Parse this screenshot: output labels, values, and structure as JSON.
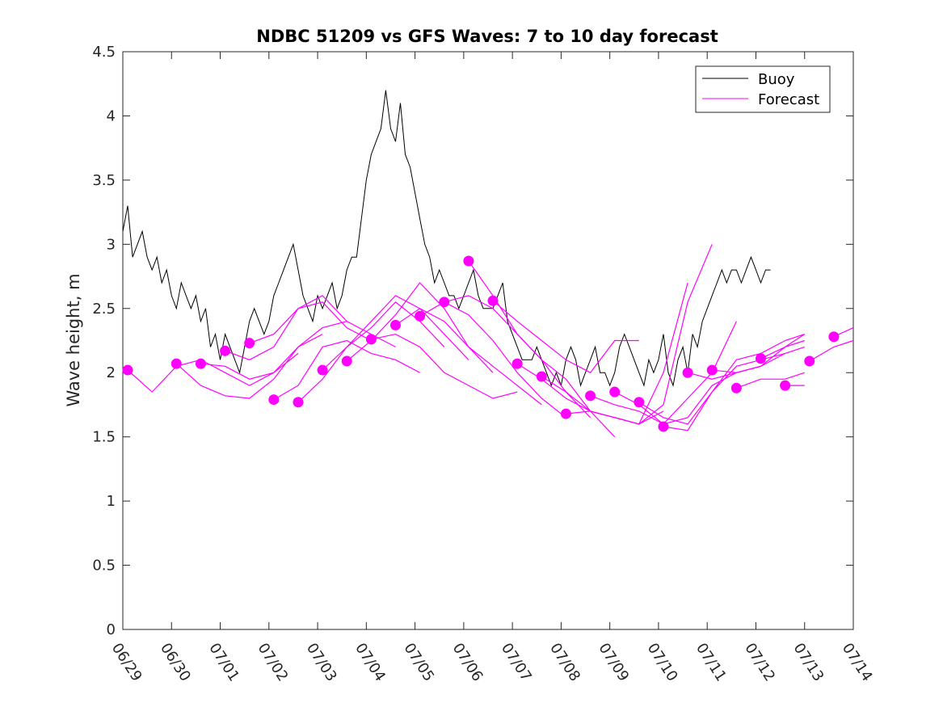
{
  "chart_data": {
    "type": "line",
    "title": "NDBC 51209 vs GFS Waves: 7 to 10 day forecast",
    "ylabel": "Wave height, m",
    "xlabel": "",
    "ylim": [
      0,
      4.5
    ],
    "yticks": [
      0,
      0.5,
      1,
      1.5,
      2,
      2.5,
      3,
      3.5,
      4,
      4.5
    ],
    "ytick_labels": [
      "0",
      "0.5",
      "1",
      "1.5",
      "2",
      "2.5",
      "3",
      "3.5",
      "4",
      "4.5"
    ],
    "x_axis": "date",
    "xlim": [
      "06/29",
      "07/14"
    ],
    "xtick_labels": [
      "06/29",
      "06/30",
      "07/01",
      "07/02",
      "07/03",
      "07/04",
      "07/05",
      "07/06",
      "07/07",
      "07/08",
      "07/09",
      "07/10",
      "07/11",
      "07/12",
      "07/13",
      "07/14"
    ],
    "legend": {
      "location": "top-right",
      "entries": [
        {
          "label": "Buoy",
          "color": "#000000"
        },
        {
          "label": "Forecast",
          "color": "#ff00ff"
        }
      ]
    },
    "series": [
      {
        "name": "Buoy",
        "color": "#000000",
        "x_days": [
          0,
          0.1,
          0.2,
          0.3,
          0.4,
          0.5,
          0.6,
          0.7,
          0.8,
          0.9,
          1.0,
          1.1,
          1.2,
          1.3,
          1.4,
          1.5,
          1.6,
          1.7,
          1.8,
          1.9,
          2.0,
          2.1,
          2.2,
          2.3,
          2.4,
          2.5,
          2.6,
          2.7,
          2.8,
          2.9,
          3.0,
          3.1,
          3.2,
          3.3,
          3.4,
          3.5,
          3.6,
          3.7,
          3.8,
          3.9,
          4.0,
          4.1,
          4.2,
          4.3,
          4.4,
          4.5,
          4.6,
          4.7,
          4.8,
          4.9,
          5.0,
          5.1,
          5.2,
          5.3,
          5.4,
          5.5,
          5.6,
          5.7,
          5.8,
          5.9,
          6.0,
          6.1,
          6.2,
          6.3,
          6.4,
          6.5,
          6.6,
          6.7,
          6.8,
          6.9,
          7.0,
          7.1,
          7.2,
          7.3,
          7.4,
          7.5,
          7.6,
          7.7,
          7.8,
          7.9,
          8.0,
          8.1,
          8.2,
          8.3,
          8.4,
          8.5,
          8.6,
          8.7,
          8.8,
          8.9,
          9.0,
          9.1,
          9.2,
          9.3,
          9.4,
          9.5,
          9.6,
          9.7,
          9.8,
          9.9,
          10.0,
          10.1,
          10.2,
          10.3,
          10.4,
          10.5,
          10.6,
          10.7,
          10.8,
          10.9,
          11.0,
          11.1,
          11.2,
          11.3,
          11.4,
          11.5,
          11.6,
          11.7,
          11.8,
          11.9,
          12.0,
          12.1,
          12.2,
          12.3,
          12.4,
          12.5,
          12.6,
          12.7,
          12.8,
          12.9,
          13.0,
          13.1,
          13.2,
          13.3
        ],
        "values": [
          3.1,
          3.3,
          2.9,
          3.0,
          3.1,
          2.9,
          2.8,
          2.9,
          2.7,
          2.8,
          2.6,
          2.5,
          2.7,
          2.6,
          2.5,
          2.6,
          2.4,
          2.5,
          2.2,
          2.3,
          2.1,
          2.3,
          2.2,
          2.1,
          2.0,
          2.2,
          2.4,
          2.5,
          2.4,
          2.3,
          2.4,
          2.6,
          2.7,
          2.8,
          2.9,
          3.0,
          2.8,
          2.6,
          2.5,
          2.4,
          2.6,
          2.5,
          2.6,
          2.7,
          2.5,
          2.6,
          2.8,
          2.9,
          2.9,
          3.2,
          3.5,
          3.7,
          3.8,
          3.9,
          4.2,
          3.9,
          3.8,
          4.1,
          3.7,
          3.6,
          3.4,
          3.2,
          3.0,
          2.9,
          2.7,
          2.8,
          2.7,
          2.6,
          2.6,
          2.5,
          2.6,
          2.7,
          2.8,
          2.6,
          2.5,
          2.5,
          2.5,
          2.6,
          2.7,
          2.4,
          2.3,
          2.2,
          2.1,
          2.1,
          2.1,
          2.2,
          2.1,
          2.0,
          1.9,
          2.0,
          1.9,
          2.1,
          2.2,
          2.1,
          1.9,
          2.0,
          2.1,
          2.2,
          2.0,
          2.0,
          1.9,
          2.0,
          2.2,
          2.3,
          2.2,
          2.1,
          2.0,
          1.9,
          2.1,
          2.0,
          2.1,
          2.3,
          2.0,
          1.9,
          2.1,
          2.2,
          2.0,
          2.3,
          2.2,
          2.4,
          2.5,
          2.6,
          2.7,
          2.8,
          2.7,
          2.8,
          2.8,
          2.7,
          2.8,
          2.9,
          2.8,
          2.7,
          2.8,
          2.8
        ]
      },
      {
        "name": "Forecast",
        "color": "#ff00ff",
        "runs": [
          {
            "x_days": [
              0.1,
              0.6,
              1.1,
              1.6,
              2.1,
              2.6,
              3.1,
              3.6
            ],
            "values": [
              2.02,
              1.85,
              2.05,
              2.1,
              2.0,
              1.9,
              2.0,
              2.15
            ]
          },
          {
            "x_days": [
              1.1,
              1.6,
              2.1,
              2.6,
              3.1,
              3.6,
              4.1
            ],
            "values": [
              2.07,
              1.9,
              1.82,
              1.8,
              1.95,
              2.2,
              2.3
            ]
          },
          {
            "x_days": [
              1.6,
              2.1,
              2.6,
              3.1,
              3.6,
              4.1,
              4.6
            ],
            "values": [
              2.07,
              2.05,
              1.95,
              2.0,
              2.2,
              2.35,
              2.4
            ]
          },
          {
            "x_days": [
              2.1,
              2.6,
              3.1,
              3.6,
              4.1,
              4.6,
              5.1
            ],
            "values": [
              2.17,
              2.1,
              2.2,
              2.5,
              2.55,
              2.35,
              2.25
            ]
          },
          {
            "x_days": [
              2.6,
              3.1,
              3.6,
              4.1,
              4.6,
              5.1,
              5.6
            ],
            "values": [
              2.23,
              2.3,
              2.5,
              2.6,
              2.4,
              2.3,
              2.2
            ]
          },
          {
            "x_days": [
              3.1,
              3.6,
              4.1,
              4.6,
              5.1,
              5.6,
              6.1
            ],
            "values": [
              1.79,
              1.9,
              2.2,
              2.25,
              2.15,
              2.1,
              2.0
            ]
          },
          {
            "x_days": [
              3.6,
              4.1,
              4.6,
              5.1,
              5.6,
              6.1,
              6.6
            ],
            "values": [
              1.77,
              1.95,
              2.2,
              2.35,
              2.55,
              2.4,
              2.2
            ]
          },
          {
            "x_days": [
              4.1,
              4.6,
              5.1,
              5.6,
              6.1,
              6.6,
              7.1
            ],
            "values": [
              2.02,
              2.2,
              2.4,
              2.6,
              2.5,
              2.3,
              2.1
            ]
          },
          {
            "x_days": [
              4.6,
              5.1,
              5.6,
              6.1,
              6.6,
              7.1,
              7.6
            ],
            "values": [
              2.09,
              2.25,
              2.45,
              2.7,
              2.5,
              2.2,
              2.0
            ]
          },
          {
            "x_days": [
              5.1,
              5.6,
              6.1,
              6.6,
              7.1,
              7.6,
              8.1
            ],
            "values": [
              2.26,
              2.3,
              2.2,
              2.0,
              1.9,
              1.8,
              1.85
            ]
          },
          {
            "x_days": [
              5.6,
              6.1,
              6.6,
              7.1,
              7.6,
              8.1,
              8.6
            ],
            "values": [
              2.37,
              2.5,
              2.4,
              2.2,
              2.05,
              1.9,
              1.75
            ]
          },
          {
            "x_days": [
              6.1,
              6.6,
              7.1,
              7.6,
              8.1,
              8.6,
              9.1
            ],
            "values": [
              2.44,
              2.55,
              2.45,
              2.25,
              2.0,
              1.8,
              1.65
            ]
          },
          {
            "x_days": [
              6.6,
              7.1,
              7.6,
              8.1,
              8.6,
              9.1,
              9.6
            ],
            "values": [
              2.55,
              2.6,
              2.5,
              2.3,
              2.1,
              1.85,
              1.65
            ]
          },
          {
            "x_days": [
              7.1,
              7.6,
              8.1,
              8.6,
              9.1,
              9.6,
              10.1
            ],
            "values": [
              2.87,
              2.6,
              2.3,
              2.1,
              1.95,
              1.7,
              1.5
            ]
          },
          {
            "x_days": [
              7.6,
              8.1,
              8.6,
              9.1,
              9.6,
              10.1,
              10.6
            ],
            "values": [
              2.56,
              2.4,
              2.25,
              2.1,
              2.0,
              2.25,
              2.25
            ]
          },
          {
            "x_days": [
              8.1,
              8.6,
              9.1,
              9.6,
              10.1,
              10.6,
              11.1
            ],
            "values": [
              2.07,
              1.95,
              1.8,
              1.7,
              1.65,
              1.6,
              1.7
            ]
          },
          {
            "x_days": [
              8.6,
              9.1,
              9.6,
              10.1,
              10.6,
              11.1,
              11.6
            ],
            "values": [
              1.97,
              1.85,
              1.7,
              1.65,
              1.6,
              2.0,
              2.7
            ]
          },
          {
            "x_days": [
              9.1,
              9.6,
              10.1,
              10.6,
              11.1,
              11.6,
              12.1
            ],
            "values": [
              1.68,
              1.7,
              1.65,
              1.6,
              1.75,
              2.55,
              3.0
            ]
          },
          {
            "x_days": [
              9.6,
              10.1,
              10.6,
              11.1,
              11.6,
              12.1,
              12.6
            ],
            "values": [
              1.82,
              1.75,
              1.7,
              1.6,
              1.8,
              2.0,
              2.4
            ]
          },
          {
            "x_days": [
              10.1,
              10.6,
              11.1,
              11.6,
              12.1,
              12.6,
              13.1
            ],
            "values": [
              1.85,
              1.75,
              1.6,
              1.65,
              1.9,
              2.0,
              2.05
            ]
          },
          {
            "x_days": [
              10.6,
              11.1,
              11.6,
              12.1,
              12.6,
              13.1,
              13.6
            ],
            "values": [
              1.77,
              1.65,
              1.6,
              1.85,
              2.05,
              2.1,
              2.15
            ]
          },
          {
            "x_days": [
              11.1,
              11.6,
              12.1,
              12.6,
              13.1,
              13.6,
              14.0
            ],
            "values": [
              1.58,
              1.55,
              1.85,
              2.1,
              2.15,
              2.25,
              2.3
            ]
          },
          {
            "x_days": [
              11.6,
              12.1,
              12.6,
              13.1,
              13.6,
              14.0
            ],
            "values": [
              2.0,
              1.95,
              2.0,
              2.05,
              2.2,
              2.3
            ]
          },
          {
            "x_days": [
              12.1,
              12.6,
              13.1,
              13.6,
              14.0
            ],
            "values": [
              2.02,
              2.0,
              2.05,
              2.15,
              2.2
            ]
          },
          {
            "x_days": [
              12.6,
              13.1,
              13.6,
              14.0
            ],
            "values": [
              1.88,
              1.95,
              1.95,
              2.0
            ]
          },
          {
            "x_days": [
              13.1,
              13.6,
              14.0
            ],
            "values": [
              2.11,
              2.2,
              2.25
            ]
          },
          {
            "x_days": [
              13.6,
              14.0
            ],
            "values": [
              1.9,
              1.9
            ]
          },
          {
            "x_days": [
              14.1,
              14.6,
              15.0
            ],
            "values": [
              2.09,
              2.2,
              2.25
            ]
          },
          {
            "x_days": [
              14.6,
              15.0
            ],
            "values": [
              2.28,
              2.35
            ]
          }
        ],
        "markers": {
          "x_days": [
            0.1,
            1.1,
            1.6,
            2.1,
            2.6,
            3.1,
            3.6,
            4.1,
            4.6,
            5.1,
            5.6,
            6.1,
            6.6,
            7.1,
            7.6,
            8.1,
            8.6,
            9.1,
            9.6,
            10.1,
            10.6,
            11.1,
            11.6,
            12.1,
            12.6,
            13.1,
            13.6,
            14.1,
            14.6
          ],
          "values": [
            2.02,
            2.07,
            2.07,
            2.17,
            2.23,
            1.79,
            1.77,
            2.02,
            2.09,
            2.26,
            2.37,
            2.44,
            2.55,
            2.87,
            2.56,
            2.07,
            1.97,
            1.68,
            1.82,
            1.85,
            1.77,
            1.58,
            2.0,
            2.02,
            1.88,
            2.11,
            1.9,
            2.09,
            2.28
          ]
        }
      }
    ]
  }
}
